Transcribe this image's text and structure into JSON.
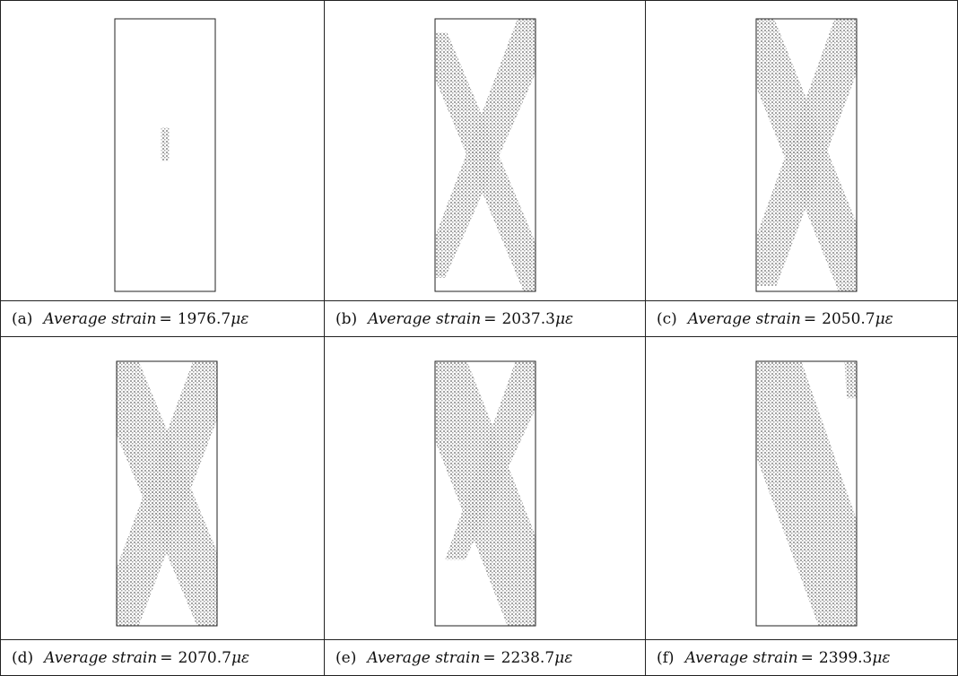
{
  "panels": [
    {
      "tag": "(a)",
      "label": "Average strain",
      "value": "1976.7",
      "unit": "με",
      "stage": 0
    },
    {
      "tag": "(b)",
      "label": "Average strain",
      "value": "2037.3",
      "unit": "με",
      "stage": 1
    },
    {
      "tag": "(c)",
      "label": "Average strain",
      "value": "2050.7",
      "unit": "με",
      "stage": 2
    },
    {
      "tag": "(d)",
      "label": "Average strain",
      "value": "2070.7",
      "unit": "με",
      "stage": 3
    },
    {
      "tag": "(e)",
      "label": "Average strain",
      "value": "2238.7",
      "unit": "με",
      "stage": 4
    },
    {
      "tag": "(f)",
      "label": "Average strain",
      "value": "2399.3",
      "unit": "με",
      "stage": 5
    }
  ],
  "colors": {
    "damage": "#9a9a9a",
    "border": "#222222",
    "background": "#ffffff"
  }
}
